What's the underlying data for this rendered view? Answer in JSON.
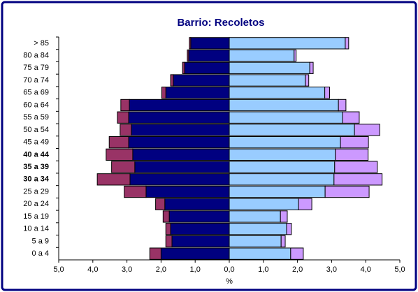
{
  "chart_data": {
    "type": "pyramid",
    "title": "Barrio: Recoletos",
    "x_label": "%",
    "categories": [
      "> 85",
      "80 a 84",
      "75 a 79",
      "70 a 74",
      "65 a 69",
      "60 a 64",
      "55 a 59",
      "50 a 54",
      "45 a 49",
      "40 a 44",
      "35 a 39",
      "30 a 34",
      "25 a 29",
      "20 a 24",
      "15 a 19",
      "10 a 14",
      "5 a 9",
      "0 a 4"
    ],
    "series": [
      {
        "color": "#000080",
        "side": "left",
        "values": [
          1.13,
          1.19,
          1.31,
          1.64,
          1.86,
          2.93,
          2.95,
          2.87,
          2.95,
          2.83,
          2.77,
          2.91,
          2.44,
          1.89,
          1.76,
          1.72,
          1.68,
          2.0
        ]
      },
      {
        "color": "#993366",
        "side": "left",
        "values": [
          0.04,
          0.04,
          0.06,
          0.08,
          0.12,
          0.25,
          0.33,
          0.33,
          0.57,
          0.78,
          0.68,
          0.96,
          0.64,
          0.27,
          0.18,
          0.14,
          0.18,
          0.33
        ]
      },
      {
        "color": "#99ccff",
        "side": "right",
        "values": [
          3.4,
          1.9,
          2.36,
          2.23,
          2.8,
          3.2,
          3.32,
          3.67,
          3.26,
          3.11,
          3.09,
          3.07,
          2.81,
          2.03,
          1.5,
          1.68,
          1.52,
          1.8
        ]
      },
      {
        "color": "#cc99ff",
        "side": "right",
        "values": [
          0.1,
          0.06,
          0.1,
          0.1,
          0.14,
          0.22,
          0.49,
          0.74,
          0.82,
          0.96,
          1.25,
          1.41,
          1.29,
          0.39,
          0.2,
          0.14,
          0.12,
          0.37
        ]
      }
    ],
    "xlim": [
      -5,
      5
    ],
    "xticks": [
      {
        "value": -5,
        "label": "5,0"
      },
      {
        "value": -4,
        "label": "4,0"
      },
      {
        "value": -3,
        "label": "3,0"
      },
      {
        "value": -2,
        "label": "2,0"
      },
      {
        "value": -1,
        "label": "1,0"
      },
      {
        "value": 0,
        "label": "0,0"
      },
      {
        "value": 1,
        "label": "1,0"
      },
      {
        "value": 2,
        "label": "2,0"
      },
      {
        "value": 3,
        "label": "3,0"
      },
      {
        "value": 4,
        "label": "4,0"
      },
      {
        "value": 5,
        "label": "5,0"
      }
    ]
  }
}
